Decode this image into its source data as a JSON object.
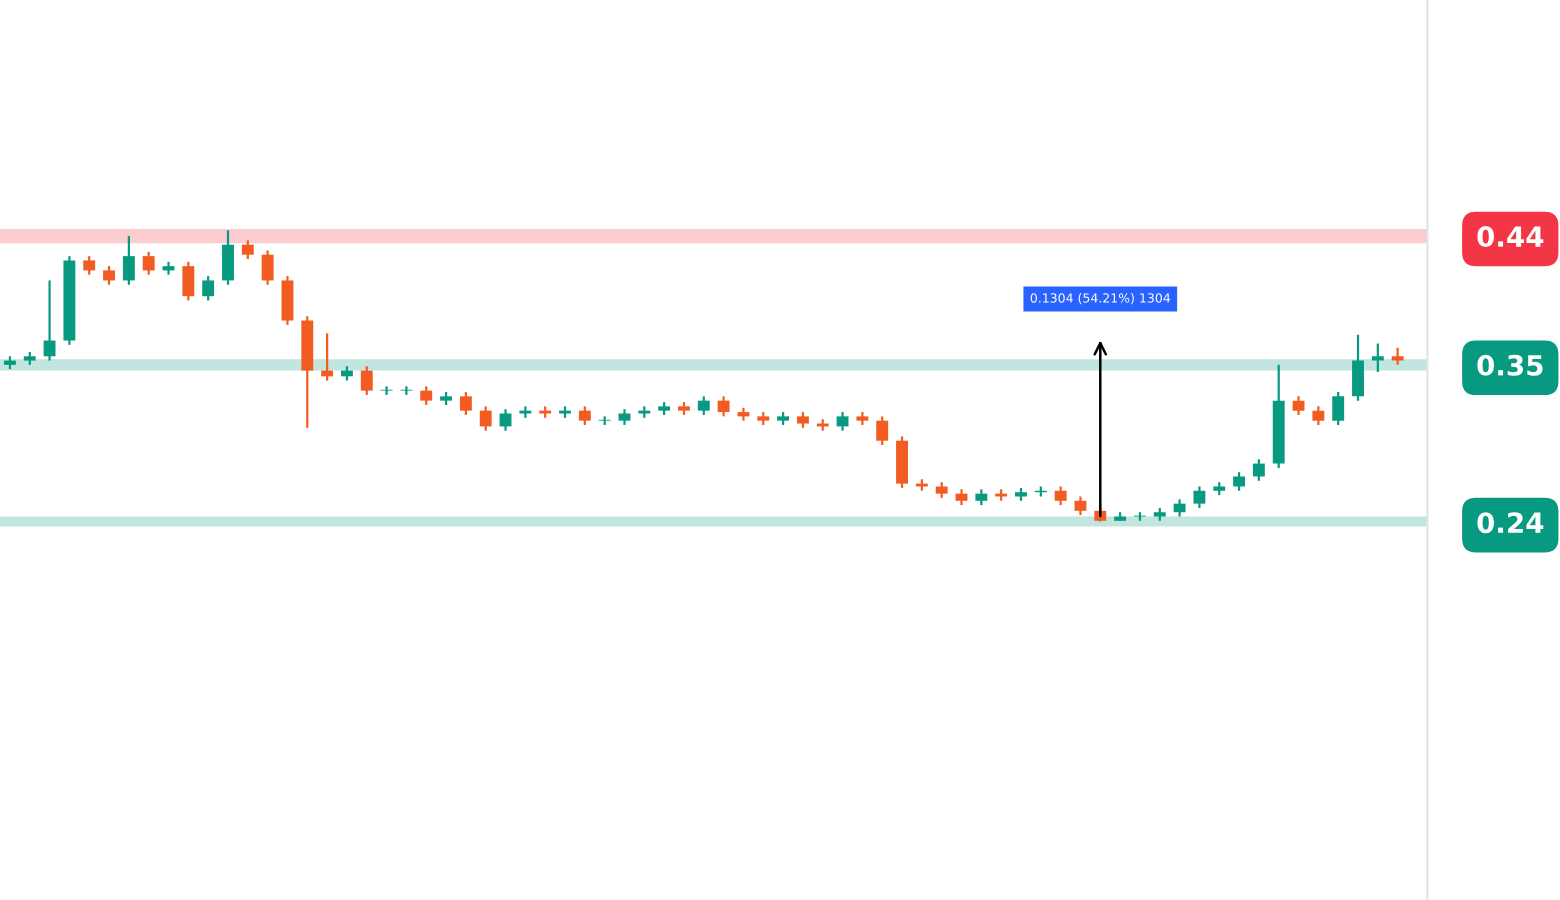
{
  "chart_data": {
    "type": "candlestick",
    "categories": [
      null,
      null,
      null,
      null,
      null,
      null,
      null,
      null,
      null,
      null,
      null,
      null,
      null,
      null,
      null,
      null,
      null,
      null,
      null,
      null,
      null,
      null,
      null,
      null,
      null,
      null,
      null,
      null,
      null,
      null,
      null,
      null,
      null,
      null,
      null,
      null,
      null,
      null,
      null,
      null,
      null,
      null,
      null,
      null,
      null,
      null,
      null,
      null,
      null,
      null,
      null,
      null,
      null,
      null,
      null,
      null,
      null,
      null,
      null,
      null,
      null,
      null,
      null,
      null,
      null,
      null,
      null,
      null,
      null,
      null,
      null
    ],
    "ohlc": [
      [
        0.35,
        0.356,
        0.347,
        0.353
      ],
      [
        0.353,
        0.359,
        0.35,
        0.356
      ],
      [
        0.356,
        0.409,
        0.353,
        0.367
      ],
      [
        0.367,
        0.426,
        0.364,
        0.423
      ],
      [
        0.423,
        0.426,
        0.413,
        0.416
      ],
      [
        0.416,
        0.419,
        0.406,
        0.409
      ],
      [
        0.409,
        0.44,
        0.406,
        0.426
      ],
      [
        0.426,
        0.429,
        0.413,
        0.416
      ],
      [
        0.416,
        0.422,
        0.413,
        0.419
      ],
      [
        0.419,
        0.422,
        0.395,
        0.398
      ],
      [
        0.398,
        0.412,
        0.395,
        0.409
      ],
      [
        0.409,
        0.444,
        0.406,
        0.434
      ],
      [
        0.434,
        0.437,
        0.424,
        0.427
      ],
      [
        0.427,
        0.43,
        0.406,
        0.409
      ],
      [
        0.409,
        0.412,
        0.378,
        0.381
      ],
      [
        0.381,
        0.384,
        0.306,
        0.346
      ],
      [
        0.346,
        0.372,
        0.339,
        0.342
      ],
      [
        0.342,
        0.349,
        0.339,
        0.346
      ],
      [
        0.346,
        0.349,
        0.329,
        0.332
      ],
      [
        0.332,
        0.335,
        0.329,
        0.332
      ],
      [
        0.332,
        0.335,
        0.329,
        0.332
      ],
      [
        0.332,
        0.335,
        0.322,
        0.325
      ],
      [
        0.325,
        0.331,
        0.322,
        0.328
      ],
      [
        0.328,
        0.331,
        0.315,
        0.318
      ],
      [
        0.318,
        0.321,
        0.304,
        0.307
      ],
      [
        0.307,
        0.319,
        0.304,
        0.316
      ],
      [
        0.316,
        0.321,
        0.313,
        0.318
      ],
      [
        0.318,
        0.321,
        0.313,
        0.316
      ],
      [
        0.316,
        0.321,
        0.313,
        0.318
      ],
      [
        0.318,
        0.321,
        0.308,
        0.311
      ],
      [
        0.311,
        0.314,
        0.308,
        0.311
      ],
      [
        0.311,
        0.319,
        0.308,
        0.316
      ],
      [
        0.316,
        0.321,
        0.313,
        0.318
      ],
      [
        0.318,
        0.324,
        0.315,
        0.321
      ],
      [
        0.321,
        0.324,
        0.315,
        0.318
      ],
      [
        0.318,
        0.328,
        0.315,
        0.325
      ],
      [
        0.325,
        0.328,
        0.314,
        0.317
      ],
      [
        0.317,
        0.32,
        0.311,
        0.314
      ],
      [
        0.314,
        0.317,
        0.308,
        0.311
      ],
      [
        0.311,
        0.317,
        0.308,
        0.314
      ],
      [
        0.314,
        0.317,
        0.306,
        0.309
      ],
      [
        0.309,
        0.312,
        0.304,
        0.307
      ],
      [
        0.307,
        0.317,
        0.304,
        0.314
      ],
      [
        0.314,
        0.317,
        0.308,
        0.311
      ],
      [
        0.311,
        0.314,
        0.294,
        0.297
      ],
      [
        0.297,
        0.3,
        0.264,
        0.267
      ],
      [
        0.267,
        0.27,
        0.262,
        0.265
      ],
      [
        0.265,
        0.268,
        0.257,
        0.26
      ],
      [
        0.26,
        0.263,
        0.252,
        0.255
      ],
      [
        0.255,
        0.263,
        0.252,
        0.26
      ],
      [
        0.26,
        0.263,
        0.255,
        0.258
      ],
      [
        0.258,
        0.264,
        0.255,
        0.261
      ],
      [
        0.261,
        0.265,
        0.258,
        0.262
      ],
      [
        0.262,
        0.265,
        0.252,
        0.255
      ],
      [
        0.255,
        0.258,
        0.245,
        0.248
      ],
      [
        0.248,
        0.251,
        0.2405,
        0.241
      ],
      [
        0.241,
        0.247,
        0.241,
        0.244
      ],
      [
        0.244,
        0.247,
        0.241,
        0.244
      ],
      [
        0.244,
        0.25,
        0.241,
        0.247
      ],
      [
        0.247,
        0.256,
        0.244,
        0.253
      ],
      [
        0.253,
        0.265,
        0.25,
        0.262
      ],
      [
        0.262,
        0.268,
        0.259,
        0.265
      ],
      [
        0.265,
        0.275,
        0.262,
        0.272
      ],
      [
        0.272,
        0.284,
        0.269,
        0.281
      ],
      [
        0.281,
        0.35,
        0.278,
        0.325
      ],
      [
        0.325,
        0.328,
        0.315,
        0.318
      ],
      [
        0.318,
        0.321,
        0.308,
        0.311
      ],
      [
        0.311,
        0.331,
        0.308,
        0.328
      ],
      [
        0.328,
        0.371,
        0.325,
        0.353
      ],
      [
        0.353,
        0.365,
        0.345,
        0.356
      ],
      [
        0.356,
        0.362,
        0.35,
        0.353
      ]
    ],
    "colors": [
      "#089981",
      "#089981",
      "#089981",
      "#089981",
      "#f25c22",
      "#f25c22",
      "#089981",
      "#f25c22",
      "#089981",
      "#f25c22",
      "#089981",
      "#089981",
      "#f25c22",
      "#f25c22",
      "#f25c22",
      "#f25c22",
      "#f25c22",
      "#089981",
      "#f25c22",
      "#089981",
      "#089981",
      "#f25c22",
      "#089981",
      "#f25c22",
      "#f25c22",
      "#089981",
      "#089981",
      "#f25c22",
      "#089981",
      "#f25c22",
      "#089981",
      "#089981",
      "#089981",
      "#089981",
      "#f25c22",
      "#089981",
      "#f25c22",
      "#f25c22",
      "#f25c22",
      "#089981",
      "#f25c22",
      "#f25c22",
      "#089981",
      "#f25c22",
      "#f25c22",
      "#f25c22",
      "#f25c22",
      "#f25c22",
      "#f25c22",
      "#089981",
      "#f25c22",
      "#089981",
      "#089981",
      "#f25c22",
      "#f25c22",
      "#f25c22",
      "#089981",
      "#089981",
      "#089981",
      "#089981",
      "#089981",
      "#089981",
      "#089981",
      "#089981",
      "#089981",
      "#f25c22",
      "#f25c22",
      "#089981",
      "#089981",
      "#089981",
      "#f25c22"
    ],
    "ylim": [
      -0.024,
      0.605
    ],
    "yticks": [
      0.24,
      0.35,
      0.44
    ],
    "tick_labels": "y",
    "bands": [
      {
        "axis": "y",
        "from": 0.435,
        "to": 0.445,
        "color": "#f23645"
      },
      {
        "axis": "y",
        "from": 0.346,
        "to": 0.354,
        "color": "#089981"
      },
      {
        "axis": "y",
        "from": 0.237,
        "to": 0.244,
        "color": "#089981"
      }
    ],
    "annotations": [
      "0.1304 (54.21%) 1304"
    ]
  }
}
